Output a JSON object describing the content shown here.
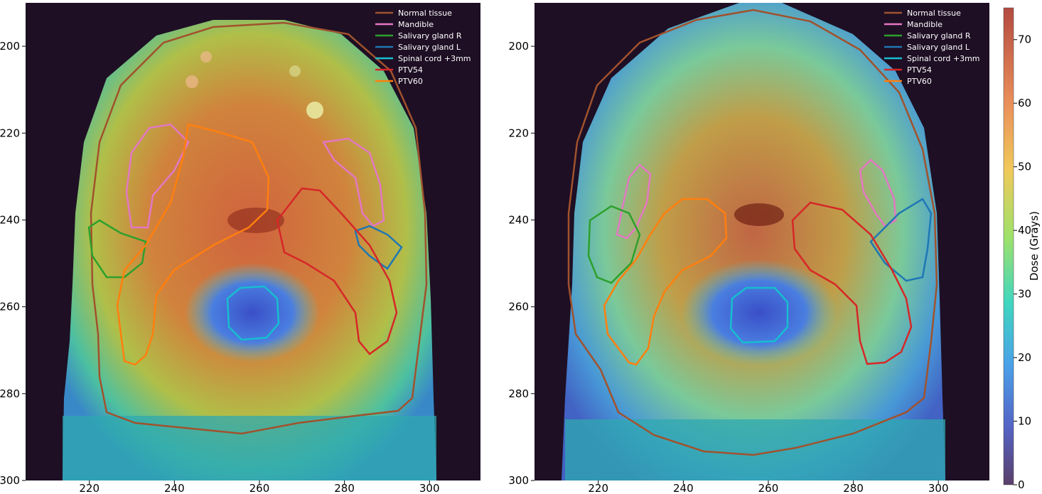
{
  "chart_data": [
    {
      "type": "heatmap",
      "panel": "left",
      "xlim": [
        205,
        312
      ],
      "ylim": [
        300,
        190
      ],
      "x_ticks": [
        220,
        240,
        260,
        280,
        300
      ],
      "y_ticks": [
        200,
        220,
        240,
        260,
        280,
        300
      ],
      "legend_placement": "top-right",
      "legend": [
        "Normal tissue",
        "Mandible",
        "Salivary gland R",
        "Salivary gland L",
        "Spinal cord +3mm",
        "PTV54",
        "PTV60"
      ]
    },
    {
      "type": "heatmap",
      "panel": "right",
      "xlim": [
        205,
        312
      ],
      "ylim": [
        300,
        190
      ],
      "x_ticks": [
        220,
        240,
        260,
        280,
        300
      ],
      "y_ticks": [
        200,
        220,
        240,
        260,
        280,
        300
      ],
      "legend_placement": "top-right",
      "legend": [
        "Normal tissue",
        "Mandible",
        "Salivary gland R",
        "Salivary gland L",
        "Spinal cord +3mm",
        "PTV54",
        "PTV60"
      ]
    }
  ],
  "colorbar": {
    "label": "Dose (Grays)",
    "range": [
      0,
      75
    ],
    "ticks": [
      0,
      10,
      20,
      30,
      40,
      50,
      60,
      70
    ]
  },
  "structure_colors": {
    "Normal tissue": "#a0522d",
    "Mandible": "#e377c2",
    "Salivary gland R": "#2ca02c",
    "Salivary gland L": "#1f77b4",
    "Spinal cord +3mm": "#17becf",
    "PTV54": "#d62728",
    "PTV60": "#ff7f0e"
  }
}
